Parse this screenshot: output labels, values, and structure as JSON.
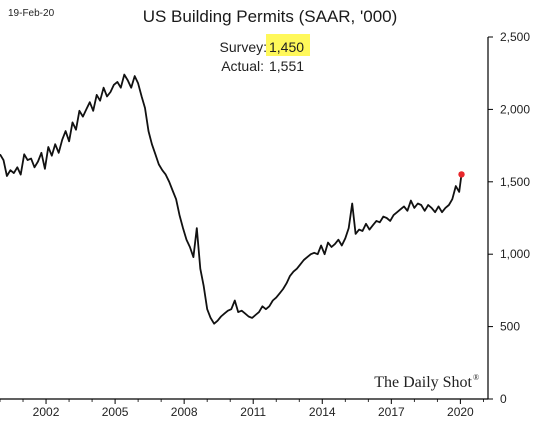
{
  "date_label": "19-Feb-20",
  "title": "US Building Permits (SAAR, '000)",
  "survey_label": "Survey:",
  "survey_value": "1,450",
  "actual_label": "Actual:",
  "actual_value": "1,551",
  "watermark": "The Daily Shot",
  "watermark_mark": "®",
  "colors": {
    "line": "#111111",
    "marker": "#e8262b",
    "highlight": "#fff85a",
    "axis": "#000000"
  },
  "chart_data": {
    "type": "line",
    "title": "US Building Permits (SAAR, '000)",
    "xlabel": "",
    "ylabel": "",
    "xlim": [
      2000.0,
      2021.2
    ],
    "ylim": [
      0,
      2500
    ],
    "grid": false,
    "y_axis_position": "right",
    "x_ticks": [
      2002,
      2005,
      2008,
      2011,
      2014,
      2017,
      2020
    ],
    "x_tick_labels": [
      "2002",
      "2005",
      "2008",
      "2011",
      "2014",
      "2017",
      "2020"
    ],
    "y_ticks": [
      0,
      500,
      1000,
      1500,
      2000,
      2500
    ],
    "y_tick_labels": [
      "0",
      "500",
      "1,000",
      "1,500",
      "2,000",
      "2,500"
    ],
    "series": [
      {
        "x": [
          2000.0,
          2000.15,
          2000.3,
          2000.45,
          2000.6,
          2000.75,
          2000.9,
          2001.05,
          2001.2,
          2001.35,
          2001.5,
          2001.65,
          2001.8,
          2001.95,
          2002.1,
          2002.25,
          2002.4,
          2002.55,
          2002.7,
          2002.85,
          2003.0,
          2003.15,
          2003.3,
          2003.45,
          2003.6,
          2003.75,
          2003.9,
          2004.05,
          2004.2,
          2004.35,
          2004.5,
          2004.65,
          2004.8,
          2004.95,
          2005.1,
          2005.25,
          2005.4,
          2005.55,
          2005.7,
          2005.85,
          2006.0,
          2006.15,
          2006.3,
          2006.45,
          2006.6,
          2006.75,
          2006.9,
          2007.05,
          2007.2,
          2007.35,
          2007.5,
          2007.65,
          2007.8,
          2007.95,
          2008.1,
          2008.25,
          2008.4,
          2008.55,
          2008.7,
          2008.85,
          2009.0,
          2009.15,
          2009.3,
          2009.45,
          2009.6,
          2009.75,
          2009.9,
          2010.05,
          2010.2,
          2010.35,
          2010.5,
          2010.65,
          2010.8,
          2010.95,
          2011.1,
          2011.25,
          2011.4,
          2011.55,
          2011.7,
          2011.85,
          2012.0,
          2012.15,
          2012.3,
          2012.45,
          2012.6,
          2012.75,
          2012.9,
          2013.05,
          2013.2,
          2013.35,
          2013.5,
          2013.65,
          2013.8,
          2013.95,
          2014.1,
          2014.25,
          2014.4,
          2014.55,
          2014.7,
          2014.85,
          2015.0,
          2015.15,
          2015.3,
          2015.45,
          2015.6,
          2015.75,
          2015.9,
          2016.05,
          2016.2,
          2016.35,
          2016.5,
          2016.65,
          2016.8,
          2016.95,
          2017.1,
          2017.25,
          2017.4,
          2017.55,
          2017.7,
          2017.85,
          2018.0,
          2018.15,
          2018.3,
          2018.45,
          2018.6,
          2018.75,
          2018.9,
          2019.05,
          2019.2,
          2019.35,
          2019.5,
          2019.65,
          2019.8,
          2019.95,
          2020.05
        ],
        "values": [
          1690,
          1650,
          1540,
          1580,
          1560,
          1600,
          1550,
          1690,
          1650,
          1660,
          1600,
          1640,
          1700,
          1590,
          1740,
          1680,
          1760,
          1700,
          1790,
          1850,
          1780,
          1910,
          1860,
          1990,
          1950,
          2000,
          2050,
          1990,
          2100,
          2060,
          2150,
          2090,
          2120,
          2170,
          2190,
          2150,
          2240,
          2200,
          2150,
          2230,
          2180,
          2090,
          2010,
          1850,
          1760,
          1690,
          1620,
          1580,
          1550,
          1500,
          1440,
          1380,
          1270,
          1180,
          1100,
          1050,
          980,
          1180,
          900,
          780,
          620,
          560,
          520,
          540,
          570,
          590,
          610,
          620,
          680,
          600,
          610,
          590,
          570,
          560,
          580,
          600,
          640,
          620,
          640,
          680,
          700,
          730,
          760,
          800,
          850,
          880,
          900,
          930,
          960,
          980,
          1000,
          1010,
          1000,
          1060,
          1000,
          1080,
          1050,
          1070,
          1100,
          1060,
          1110,
          1180,
          1350,
          1140,
          1170,
          1160,
          1210,
          1170,
          1200,
          1230,
          1220,
          1260,
          1250,
          1230,
          1270,
          1290,
          1310,
          1330,
          1300,
          1370,
          1320,
          1350,
          1340,
          1300,
          1340,
          1320,
          1290,
          1330,
          1290,
          1320,
          1340,
          1380,
          1470,
          1430,
          1551
        ]
      }
    ],
    "last_point": {
      "x": 2020.05,
      "value": 1551
    }
  }
}
